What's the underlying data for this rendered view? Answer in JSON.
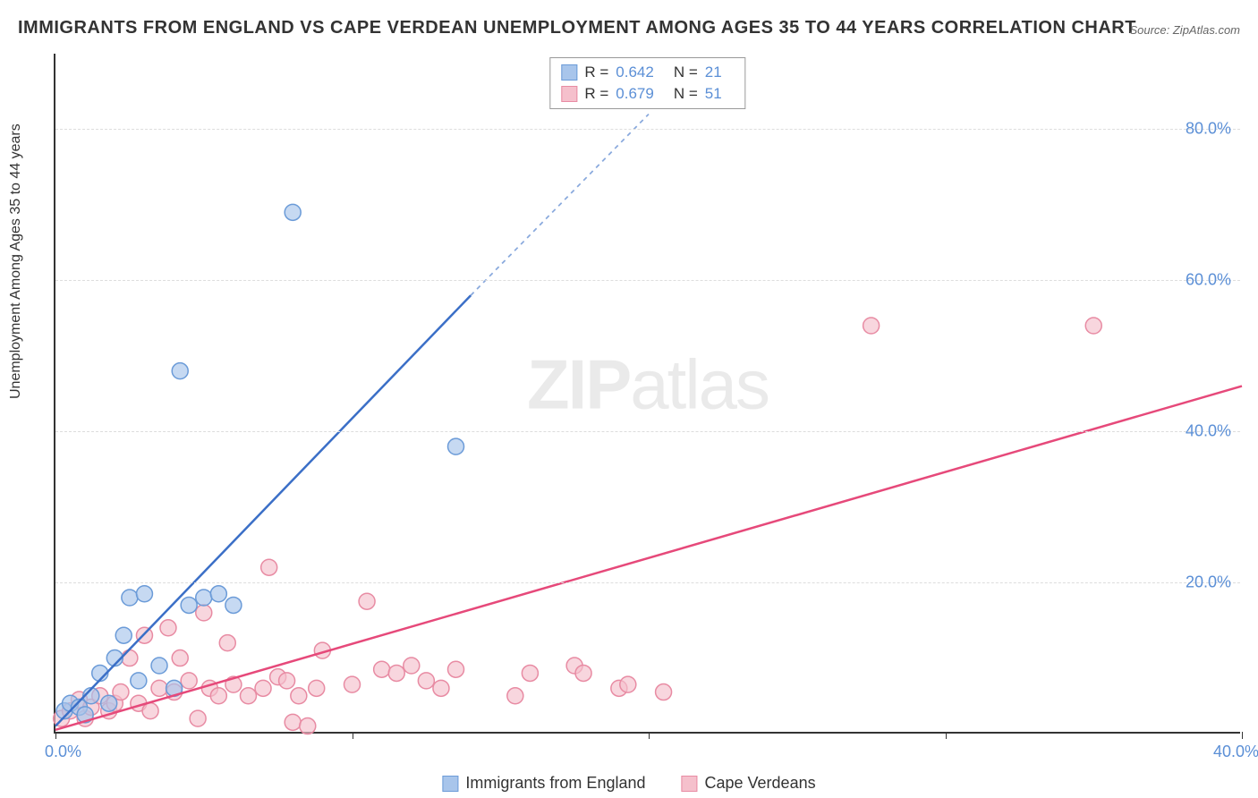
{
  "title": "IMMIGRANTS FROM ENGLAND VS CAPE VERDEAN UNEMPLOYMENT AMONG AGES 35 TO 44 YEARS CORRELATION CHART",
  "source": "Source: ZipAtlas.com",
  "y_axis_label": "Unemployment Among Ages 35 to 44 years",
  "watermark_bold": "ZIP",
  "watermark_rest": "atlas",
  "chart": {
    "type": "scatter",
    "xlim": [
      0,
      40
    ],
    "ylim": [
      0,
      90
    ],
    "x_ticks": [
      0,
      10,
      20,
      30,
      40
    ],
    "x_tick_labels": [
      "0.0%",
      "",
      "",
      "",
      "40.0%"
    ],
    "y_ticks": [
      20,
      40,
      60,
      80
    ],
    "y_tick_labels": [
      "20.0%",
      "40.0%",
      "60.0%",
      "80.0%"
    ],
    "grid_color": "#dddddd",
    "background_color": "#ffffff",
    "axis_color": "#333333",
    "series": [
      {
        "name": "Immigrants from England",
        "color_fill": "#a8c5eb",
        "color_stroke": "#6b9bd8",
        "marker_radius": 9,
        "r": 0.642,
        "n": 21,
        "trend": {
          "x1": 0,
          "y1": 1,
          "x2": 14,
          "y2": 58,
          "dashed_extend_to_x": 20,
          "dashed_extend_to_y": 82,
          "stroke": "#3b6fc7",
          "width": 2.5
        },
        "points": [
          [
            0.3,
            3
          ],
          [
            0.5,
            4
          ],
          [
            0.8,
            3.5
          ],
          [
            1.0,
            2.5
          ],
          [
            1.2,
            5
          ],
          [
            1.5,
            8
          ],
          [
            2.0,
            10
          ],
          [
            2.3,
            13
          ],
          [
            2.5,
            18
          ],
          [
            2.8,
            7
          ],
          [
            3.0,
            18.5
          ],
          [
            3.5,
            9
          ],
          [
            4.0,
            6
          ],
          [
            4.5,
            17
          ],
          [
            5.0,
            18
          ],
          [
            5.5,
            18.5
          ],
          [
            6.0,
            17
          ],
          [
            4.2,
            48
          ],
          [
            8.0,
            69
          ],
          [
            13.5,
            38
          ],
          [
            1.8,
            4
          ]
        ]
      },
      {
        "name": "Cape Verdeans",
        "color_fill": "#f5c0cc",
        "color_stroke": "#e88ba3",
        "marker_radius": 9,
        "r": 0.679,
        "n": 51,
        "trend": {
          "x1": 0,
          "y1": 0.5,
          "x2": 40,
          "y2": 46,
          "stroke": "#e6497a",
          "width": 2.5
        },
        "points": [
          [
            0.2,
            2
          ],
          [
            0.5,
            3
          ],
          [
            0.8,
            4.5
          ],
          [
            1.0,
            2
          ],
          [
            1.2,
            3.5
          ],
          [
            1.5,
            5
          ],
          [
            1.8,
            3
          ],
          [
            2.0,
            4
          ],
          [
            2.2,
            5.5
          ],
          [
            2.5,
            10
          ],
          [
            2.8,
            4
          ],
          [
            3.0,
            13
          ],
          [
            3.2,
            3
          ],
          [
            3.5,
            6
          ],
          [
            3.8,
            14
          ],
          [
            4.0,
            5.5
          ],
          [
            4.2,
            10
          ],
          [
            4.5,
            7
          ],
          [
            4.8,
            2
          ],
          [
            5.0,
            16
          ],
          [
            5.2,
            6
          ],
          [
            5.5,
            5
          ],
          [
            5.8,
            12
          ],
          [
            6.0,
            6.5
          ],
          [
            6.5,
            5
          ],
          [
            7.0,
            6
          ],
          [
            7.2,
            22
          ],
          [
            7.5,
            7.5
          ],
          [
            7.8,
            7
          ],
          [
            8.0,
            1.5
          ],
          [
            8.2,
            5
          ],
          [
            8.5,
            1
          ],
          [
            8.8,
            6
          ],
          [
            9.0,
            11
          ],
          [
            10.0,
            6.5
          ],
          [
            10.5,
            17.5
          ],
          [
            11.0,
            8.5
          ],
          [
            11.5,
            8
          ],
          [
            12.0,
            9
          ],
          [
            12.5,
            7
          ],
          [
            13.0,
            6
          ],
          [
            13.5,
            8.5
          ],
          [
            15.5,
            5
          ],
          [
            16.0,
            8
          ],
          [
            17.5,
            9
          ],
          [
            17.8,
            8
          ],
          [
            19.0,
            6
          ],
          [
            19.3,
            6.5
          ],
          [
            20.5,
            5.5
          ],
          [
            27.5,
            54
          ],
          [
            35.0,
            54
          ]
        ]
      }
    ]
  },
  "stats_labels": {
    "r": "R =",
    "n": "N ="
  },
  "legend": {
    "series1": "Immigrants from England",
    "series2": "Cape Verdeans"
  }
}
